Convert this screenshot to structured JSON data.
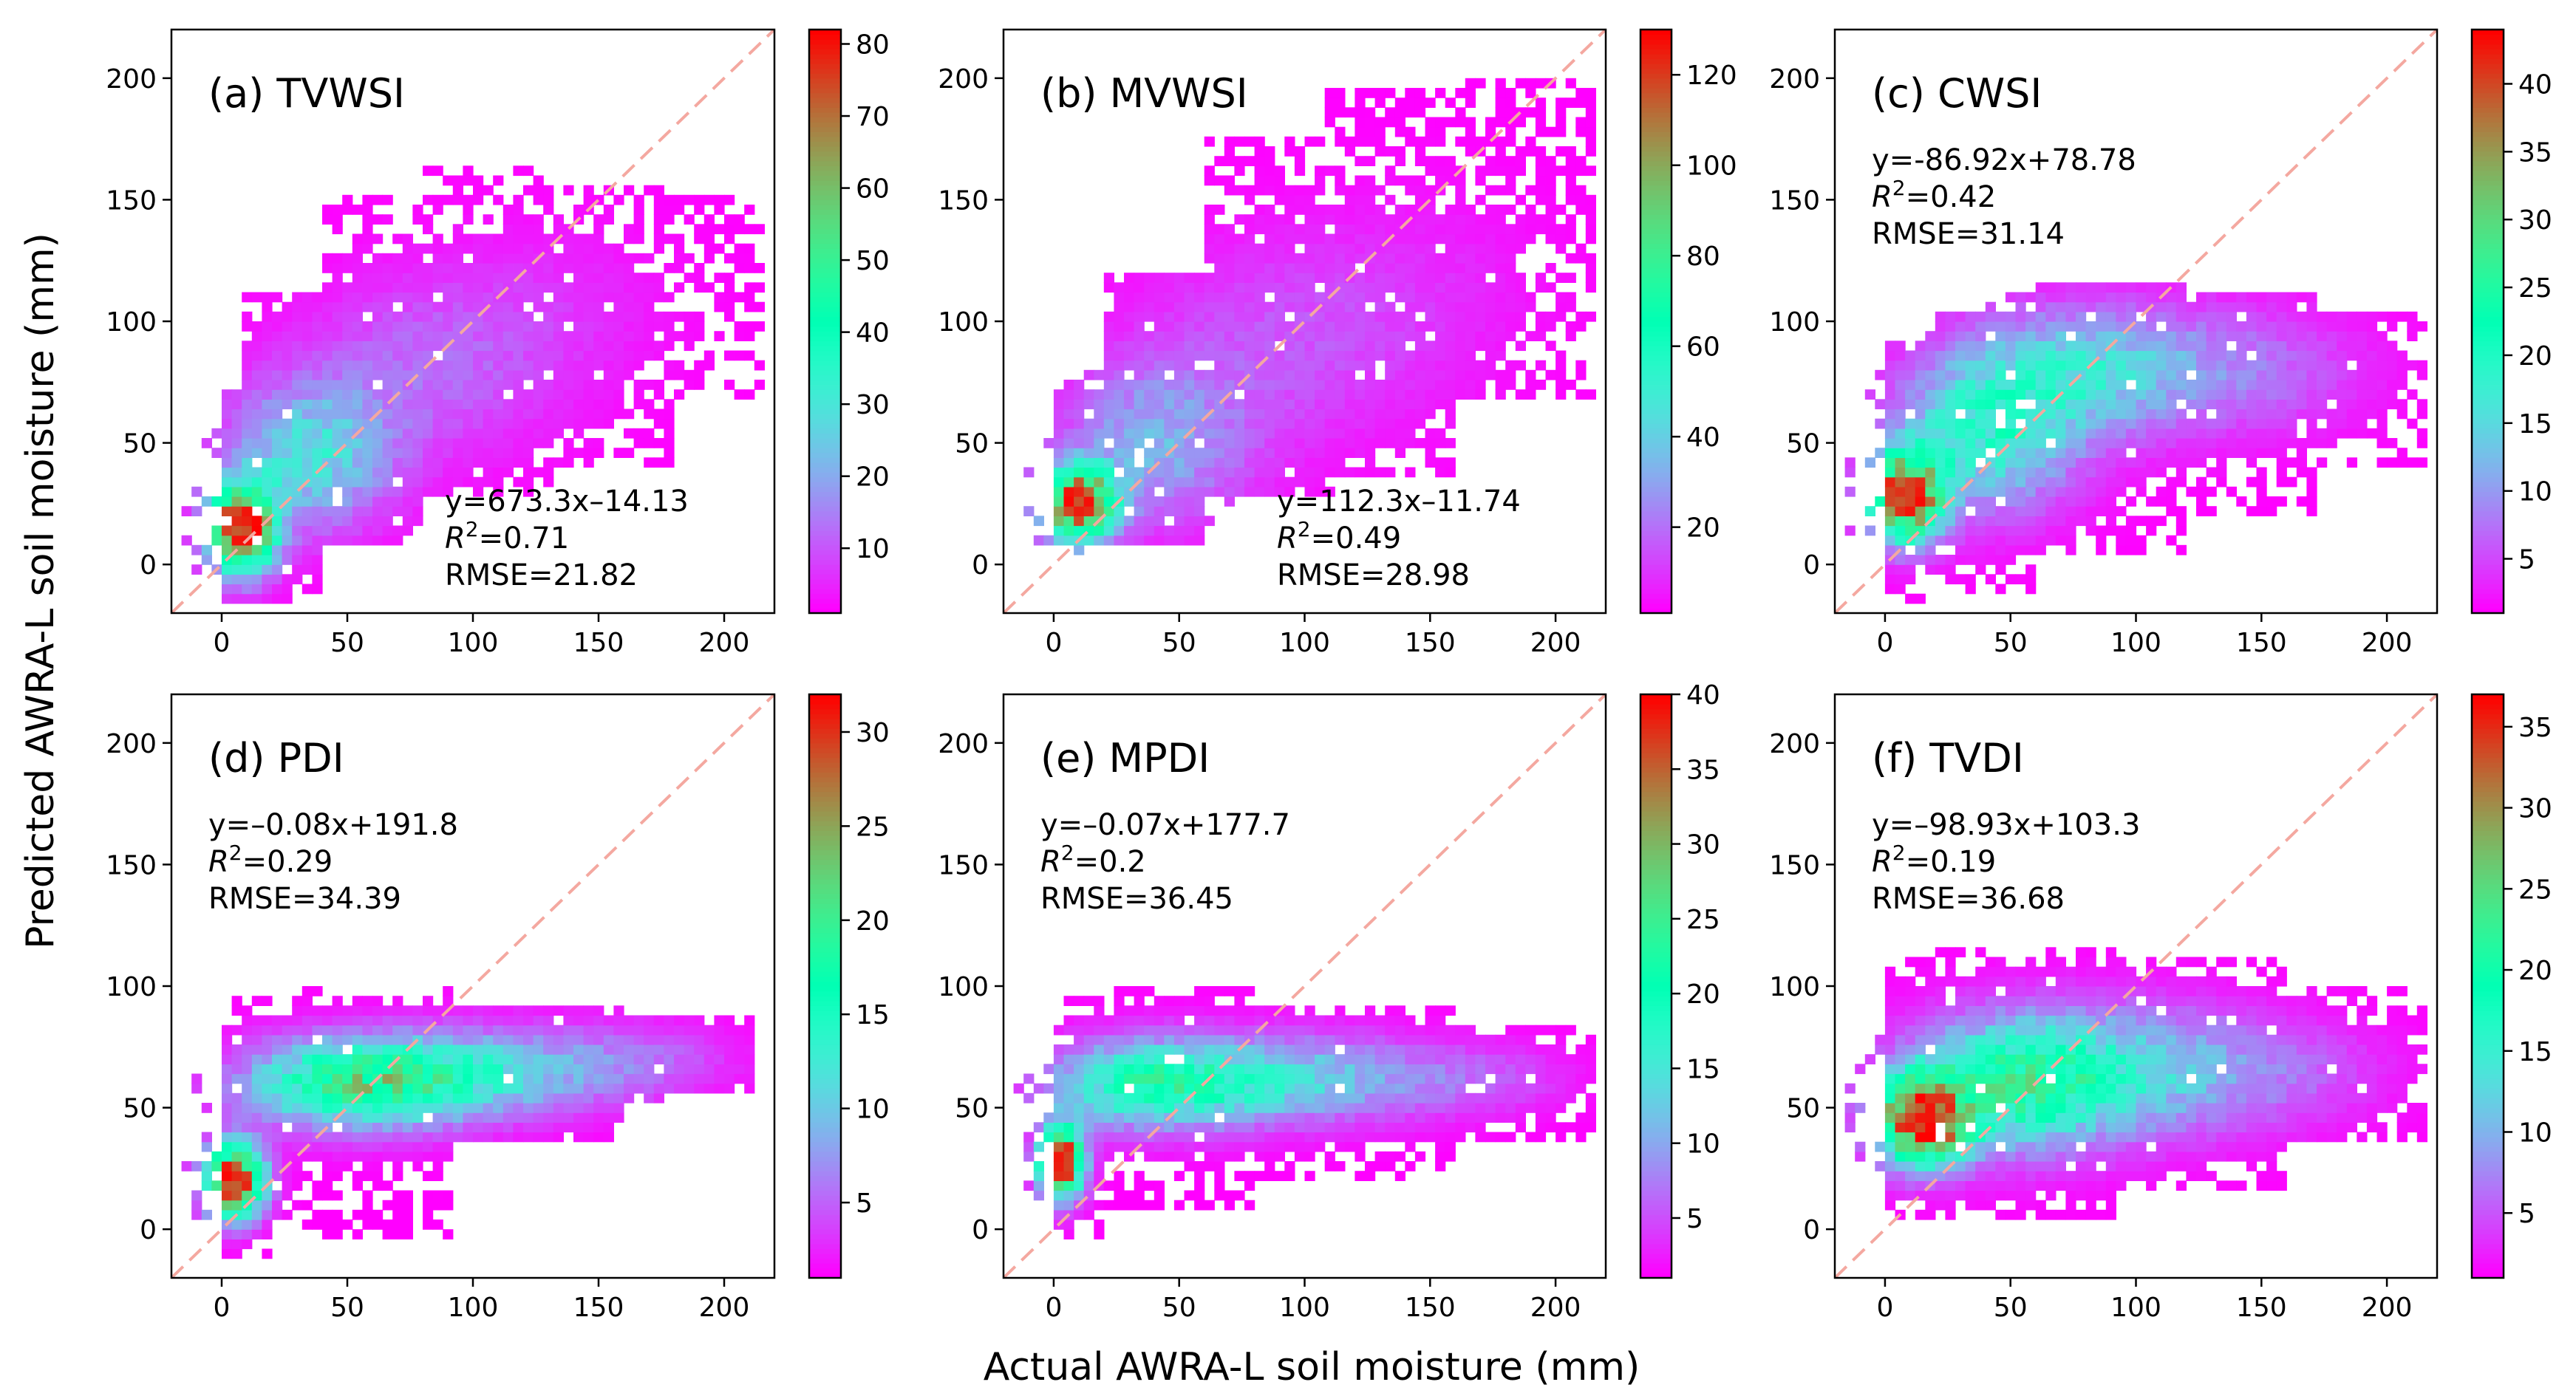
{
  "figure": {
    "ylabel": "Predicted AWRA-L soil moisture (mm)",
    "xlabel": "Actual AWRA-L soil moisture (mm)",
    "colors": {
      "one_to_one_line": "#f4a8a0",
      "axis": "#000000",
      "background": "#ffffff"
    },
    "colormap": "rainbow"
  },
  "chart_data": [
    {
      "type": "heatmap",
      "id": "a",
      "title": "(a) TVWSI",
      "equation": "y=673.3x–14.13",
      "r2_label": "R",
      "r2_value": "=0.71",
      "rmse": "RMSE=21.82",
      "annotation_position": "bottom-right",
      "xlim": [
        -20,
        220
      ],
      "ylim": [
        -20,
        220
      ],
      "xticks": [
        0,
        50,
        100,
        150,
        200
      ],
      "yticks": [
        0,
        50,
        100,
        150,
        200
      ],
      "colorbar": {
        "min": 1,
        "max": 82,
        "ticks": [
          10,
          20,
          30,
          40,
          50,
          60,
          70,
          80
        ]
      },
      "density": {
        "hotspot": [
          10,
          18
        ],
        "peak": 82,
        "blobs": [
          {
            "cx": 8,
            "cy": 15,
            "sx": 9,
            "sy": 12,
            "w": 1.0
          },
          {
            "cx": 35,
            "cy": 45,
            "sx": 22,
            "sy": 20,
            "w": 0.3
          },
          {
            "cx": 80,
            "cy": 80,
            "sx": 35,
            "sy": 25,
            "w": 0.1
          },
          {
            "cx": 130,
            "cy": 105,
            "sx": 35,
            "sy": 25,
            "w": 0.04
          }
        ],
        "ranges": [
          {
            "x0": 0,
            "x1": 10,
            "y0": -15,
            "y1": 70
          },
          {
            "x0": 10,
            "x1": 40,
            "y0": -15,
            "y1": 110
          },
          {
            "x0": 40,
            "x1": 80,
            "y0": 10,
            "y1": 150
          },
          {
            "x0": 80,
            "x1": 130,
            "y0": 30,
            "y1": 165
          },
          {
            "x0": 130,
            "x1": 180,
            "y0": 40,
            "y1": 155
          },
          {
            "x0": 180,
            "x1": 215,
            "y0": 70,
            "y1": 150
          }
        ]
      }
    },
    {
      "type": "heatmap",
      "id": "b",
      "title": "(b) MVWSI",
      "equation": "y=112.3x–11.74",
      "r2_label": "R",
      "r2_value": "=0.49",
      "rmse": "RMSE=28.98",
      "annotation_position": "bottom-right",
      "xlim": [
        -20,
        220
      ],
      "ylim": [
        -20,
        220
      ],
      "xticks": [
        0,
        50,
        100,
        150,
        200
      ],
      "yticks": [
        0,
        50,
        100,
        150,
        200
      ],
      "colorbar": {
        "min": 1,
        "max": 130,
        "ticks": [
          20,
          40,
          60,
          80,
          100,
          120
        ]
      },
      "density": {
        "hotspot": [
          10,
          25
        ],
        "peak": 130,
        "blobs": [
          {
            "cx": 10,
            "cy": 25,
            "sx": 10,
            "sy": 10,
            "w": 1.0
          },
          {
            "cx": 40,
            "cy": 50,
            "sx": 25,
            "sy": 22,
            "w": 0.2
          },
          {
            "cx": 90,
            "cy": 90,
            "sx": 40,
            "sy": 30,
            "w": 0.08
          },
          {
            "cx": 150,
            "cy": 115,
            "sx": 35,
            "sy": 30,
            "w": 0.03
          }
        ],
        "ranges": [
          {
            "x0": 0,
            "x1": 20,
            "y0": 10,
            "y1": 70
          },
          {
            "x0": 20,
            "x1": 60,
            "y0": 10,
            "y1": 120
          },
          {
            "x0": 60,
            "x1": 110,
            "y0": 30,
            "y1": 175
          },
          {
            "x0": 110,
            "x1": 160,
            "y0": 35,
            "y1": 195
          },
          {
            "x0": 160,
            "x1": 215,
            "y0": 70,
            "y1": 200
          }
        ]
      }
    },
    {
      "type": "heatmap",
      "id": "c",
      "title": "(c) CWSI",
      "equation": "y=-86.92x+78.78",
      "r2_label": "R",
      "r2_value": "=0.42",
      "rmse": "RMSE=31.14",
      "annotation_position": "top-left",
      "xlim": [
        -20,
        220
      ],
      "ylim": [
        -20,
        220
      ],
      "xticks": [
        0,
        50,
        100,
        150,
        200
      ],
      "yticks": [
        0,
        50,
        100,
        150,
        200
      ],
      "colorbar": {
        "min": 1,
        "max": 44,
        "ticks": [
          5,
          10,
          15,
          20,
          25,
          30,
          35,
          40
        ]
      },
      "density": {
        "hotspot": [
          8,
          28
        ],
        "peak": 44,
        "blobs": [
          {
            "cx": 8,
            "cy": 28,
            "sx": 10,
            "sy": 12,
            "w": 1.0
          },
          {
            "cx": 40,
            "cy": 55,
            "sx": 25,
            "sy": 22,
            "w": 0.35
          },
          {
            "cx": 80,
            "cy": 80,
            "sx": 30,
            "sy": 18,
            "w": 0.25
          },
          {
            "cx": 140,
            "cy": 80,
            "sx": 35,
            "sy": 18,
            "w": 0.12
          }
        ],
        "ranges": [
          {
            "x0": 0,
            "x1": 20,
            "y0": -15,
            "y1": 90
          },
          {
            "x0": 20,
            "x1": 60,
            "y0": -10,
            "y1": 105
          },
          {
            "x0": 60,
            "x1": 120,
            "y0": 5,
            "y1": 115
          },
          {
            "x0": 120,
            "x1": 170,
            "y0": 20,
            "y1": 110
          },
          {
            "x0": 170,
            "x1": 215,
            "y0": 40,
            "y1": 105
          }
        ]
      }
    },
    {
      "type": "heatmap",
      "id": "d",
      "title": "(d) PDI",
      "equation": "y=–0.08x+191.8",
      "r2_label": "R",
      "r2_value": "=0.29",
      "rmse": "RMSE=34.39",
      "annotation_position": "top-left",
      "xlim": [
        -20,
        220
      ],
      "ylim": [
        -20,
        220
      ],
      "xticks": [
        0,
        50,
        100,
        150,
        200
      ],
      "yticks": [
        0,
        50,
        100,
        150,
        200
      ],
      "colorbar": {
        "min": 1,
        "max": 32,
        "ticks": [
          5,
          10,
          15,
          20,
          25,
          30
        ]
      },
      "density": {
        "hotspot": [
          5,
          20
        ],
        "peak": 32,
        "blobs": [
          {
            "cx": 5,
            "cy": 20,
            "sx": 8,
            "sy": 10,
            "w": 1.0
          },
          {
            "cx": 55,
            "cy": 60,
            "sx": 30,
            "sy": 12,
            "w": 0.55
          },
          {
            "cx": 110,
            "cy": 65,
            "sx": 35,
            "sy": 12,
            "w": 0.25
          },
          {
            "cx": 170,
            "cy": 70,
            "sx": 25,
            "sy": 10,
            "w": 0.08
          }
        ],
        "ranges": [
          {
            "x0": 0,
            "x1": 20,
            "y0": -12,
            "y1": 95
          },
          {
            "x0": 20,
            "x1": 90,
            "y0": 20,
            "y1": 100
          },
          {
            "x0": 20,
            "x1": 90,
            "y0": -5,
            "y1": 35
          },
          {
            "x0": 90,
            "x1": 160,
            "y0": 35,
            "y1": 92
          },
          {
            "x0": 160,
            "x1": 212,
            "y0": 55,
            "y1": 88
          }
        ]
      }
    },
    {
      "type": "heatmap",
      "id": "e",
      "title": "(e) MPDI",
      "equation": "y=–0.07x+177.7",
      "r2_label": "R",
      "r2_value": "=0.2",
      "rmse": "RMSE=36.45",
      "annotation_position": "top-left",
      "xlim": [
        -20,
        220
      ],
      "ylim": [
        -20,
        220
      ],
      "xticks": [
        0,
        50,
        100,
        150,
        200
      ],
      "yticks": [
        0,
        50,
        100,
        150,
        200
      ],
      "colorbar": {
        "min": 1,
        "max": 40,
        "ticks": [
          5,
          10,
          15,
          20,
          25,
          30,
          35,
          40
        ]
      },
      "density": {
        "hotspot": [
          3,
          28
        ],
        "peak": 40,
        "blobs": [
          {
            "cx": 3,
            "cy": 28,
            "sx": 6,
            "sy": 10,
            "w": 1.0
          },
          {
            "cx": 40,
            "cy": 60,
            "sx": 28,
            "sy": 12,
            "w": 0.45
          },
          {
            "cx": 100,
            "cy": 62,
            "sx": 35,
            "sy": 12,
            "w": 0.25
          },
          {
            "cx": 170,
            "cy": 62,
            "sx": 25,
            "sy": 10,
            "w": 0.08
          }
        ],
        "ranges": [
          {
            "x0": 0,
            "x1": 20,
            "y0": -5,
            "y1": 95
          },
          {
            "x0": 20,
            "x1": 80,
            "y0": 10,
            "y1": 98
          },
          {
            "x0": 80,
            "x1": 160,
            "y0": 20,
            "y1": 92
          },
          {
            "x0": 160,
            "x1": 215,
            "y0": 35,
            "y1": 85
          }
        ]
      }
    },
    {
      "type": "heatmap",
      "id": "f",
      "title": "(f) TVDI",
      "equation": "y=–98.93x+103.3",
      "r2_label": "R",
      "r2_value": "=0.19",
      "rmse": "RMSE=36.68",
      "annotation_position": "top-left",
      "xlim": [
        -20,
        220
      ],
      "ylim": [
        -20,
        220
      ],
      "xticks": [
        0,
        50,
        100,
        150,
        200
      ],
      "yticks": [
        0,
        50,
        100,
        150,
        200
      ],
      "colorbar": {
        "min": 1,
        "max": 37,
        "ticks": [
          5,
          10,
          15,
          20,
          25,
          30,
          35
        ]
      },
      "density": {
        "hotspot": [
          15,
          45
        ],
        "peak": 37,
        "blobs": [
          {
            "cx": 15,
            "cy": 45,
            "sx": 12,
            "sy": 12,
            "w": 1.0
          },
          {
            "cx": 50,
            "cy": 60,
            "sx": 28,
            "sy": 18,
            "w": 0.45
          },
          {
            "cx": 100,
            "cy": 65,
            "sx": 35,
            "sy": 18,
            "w": 0.25
          },
          {
            "cx": 160,
            "cy": 65,
            "sx": 30,
            "sy": 15,
            "w": 0.08
          }
        ],
        "ranges": [
          {
            "x0": 0,
            "x1": 20,
            "y0": 5,
            "y1": 110
          },
          {
            "x0": 20,
            "x1": 90,
            "y0": 5,
            "y1": 115
          },
          {
            "x0": 90,
            "x1": 160,
            "y0": 15,
            "y1": 110
          },
          {
            "x0": 160,
            "x1": 215,
            "y0": 35,
            "y1": 100
          }
        ]
      }
    }
  ]
}
